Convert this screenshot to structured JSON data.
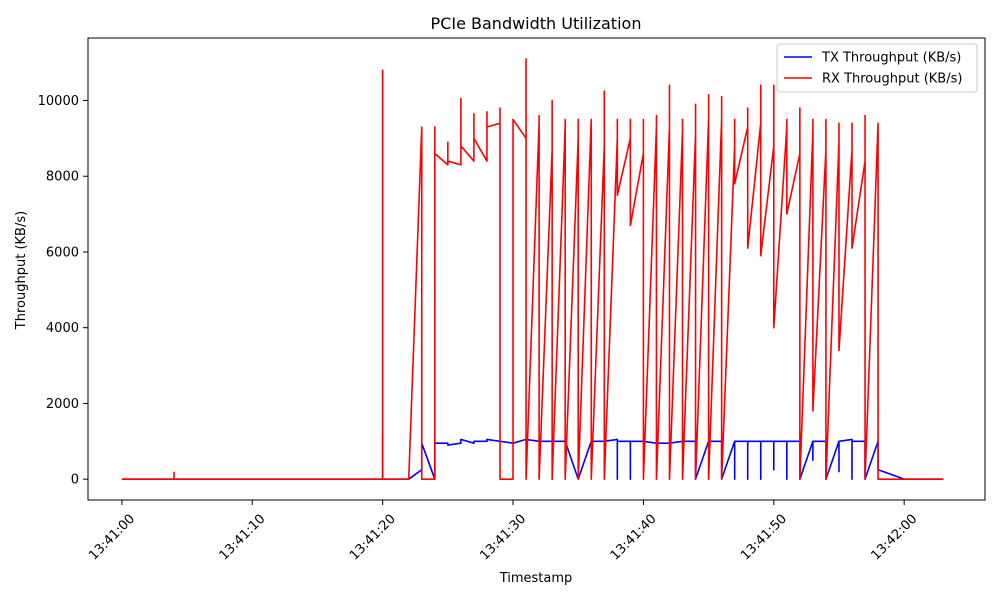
{
  "chart_data": {
    "type": "line",
    "title": "PCIe Bandwidth Utilization",
    "xlabel": "Timestamp",
    "ylabel": "Throughput (KB/s)",
    "xlim": [
      "13:40:57.4",
      "13:42:06.2"
    ],
    "ylim": [
      -550,
      11650
    ],
    "x_ticks": [
      "13:41:00",
      "13:41:10",
      "13:41:20",
      "13:41:30",
      "13:41:40",
      "13:41:50",
      "13:42:00"
    ],
    "y_ticks": [
      0,
      2000,
      4000,
      6000,
      8000,
      10000
    ],
    "grid": false,
    "legend_position": "top-right",
    "series": [
      {
        "name": "TX Throughput (KB/s)",
        "color": "#0000ff",
        "x": [
          "13:41:00",
          "13:41:02",
          "13:41:04",
          "13:41:06",
          "13:41:08",
          "13:41:10",
          "13:41:12",
          "13:41:14",
          "13:41:16",
          "13:41:18",
          "13:41:20",
          "13:41:20",
          "13:41:20",
          "13:41:22",
          "13:41:23",
          "13:41:23",
          "13:41:24",
          "13:41:24",
          "13:41:25",
          "13:41:25",
          "13:41:26",
          "13:41:26",
          "13:41:27",
          "13:41:27",
          "13:41:28",
          "13:41:28",
          "13:41:29",
          "13:41:29",
          "13:41:30",
          "13:41:31",
          "13:41:32",
          "13:41:33",
          "13:41:34",
          "13:41:35",
          "13:41:35",
          "13:41:36",
          "13:41:37",
          "13:41:38",
          "13:41:38",
          "13:41:38",
          "13:41:39",
          "13:41:39",
          "13:41:39",
          "13:41:40",
          "13:41:41",
          "13:41:42",
          "13:41:43",
          "13:41:44",
          "13:41:44",
          "13:41:45",
          "13:41:46",
          "13:41:46",
          "13:41:47",
          "13:41:47",
          "13:41:47",
          "13:41:48",
          "13:41:48",
          "13:41:48",
          "13:41:49",
          "13:41:49",
          "13:41:49",
          "13:41:50",
          "13:41:50",
          "13:41:50",
          "13:41:51",
          "13:41:51",
          "13:41:51",
          "13:41:52",
          "13:41:52",
          "13:41:53",
          "13:41:53",
          "13:41:53",
          "13:41:54",
          "13:41:54",
          "13:41:55",
          "13:41:55",
          "13:41:55",
          "13:41:56",
          "13:41:56",
          "13:41:56",
          "13:41:57",
          "13:41:57",
          "13:41:58",
          "13:41:58",
          "13:42:00",
          "13:42:01",
          "13:42:02",
          "13:42:03"
        ],
        "y": [
          0,
          0,
          0,
          0,
          0,
          0,
          0,
          0,
          0,
          0,
          0,
          1100,
          0,
          0,
          250,
          950,
          0,
          950,
          950,
          900,
          950,
          1050,
          950,
          1000,
          1000,
          1050,
          1000,
          1000,
          950,
          1050,
          1000,
          1000,
          1000,
          0,
          0,
          1000,
          1000,
          1050,
          0,
          1000,
          1000,
          0,
          1000,
          1000,
          950,
          950,
          1000,
          1000,
          0,
          1000,
          1000,
          0,
          1000,
          0,
          1000,
          1000,
          0,
          1000,
          1000,
          0,
          1000,
          1000,
          250,
          1000,
          1000,
          0,
          1000,
          1000,
          0,
          1000,
          500,
          1000,
          1000,
          0,
          1000,
          200,
          1000,
          1050,
          0,
          1000,
          1000,
          0,
          1000,
          250,
          0,
          0,
          0,
          0
        ]
      },
      {
        "name": "RX Throughput (KB/s)",
        "color": "#ff0000",
        "x": [
          "13:41:00",
          "13:41:01",
          "13:41:02",
          "13:41:03",
          "13:41:04",
          "13:41:04",
          "13:41:04",
          "13:41:06",
          "13:41:08",
          "13:41:10",
          "13:41:12",
          "13:41:14",
          "13:41:16",
          "13:41:18",
          "13:41:20",
          "13:41:20",
          "13:41:20",
          "13:41:22",
          "13:41:23",
          "13:41:23",
          "13:41:24",
          "13:41:24",
          "13:41:24",
          "13:41:25",
          "13:41:25",
          "13:41:25",
          "13:41:26",
          "13:41:26",
          "13:41:26",
          "13:41:27",
          "13:41:27",
          "13:41:27",
          "13:41:28",
          "13:41:28",
          "13:41:28",
          "13:41:29",
          "13:41:29",
          "13:41:29",
          "13:41:30",
          "13:41:30",
          "13:41:31",
          "13:41:31",
          "13:41:31",
          "13:41:32",
          "13:41:32",
          "13:41:32",
          "13:41:33",
          "13:41:33",
          "13:41:33",
          "13:41:34",
          "13:41:34",
          "13:41:34",
          "13:41:35",
          "13:41:35",
          "13:41:35",
          "13:41:36",
          "13:41:36",
          "13:41:36",
          "13:41:37",
          "13:41:37",
          "13:41:37",
          "13:41:38",
          "13:41:38",
          "13:41:38",
          "13:41:39",
          "13:41:39",
          "13:41:39",
          "13:41:40",
          "13:41:40",
          "13:41:40",
          "13:41:41",
          "13:41:41",
          "13:41:41",
          "13:41:42",
          "13:41:42",
          "13:41:42",
          "13:41:43",
          "13:41:43",
          "13:41:43",
          "13:41:44",
          "13:41:44",
          "13:41:44",
          "13:41:45",
          "13:41:45",
          "13:41:45",
          "13:41:46",
          "13:41:46",
          "13:41:46",
          "13:41:47",
          "13:41:47",
          "13:41:47",
          "13:41:48",
          "13:41:48",
          "13:41:48",
          "13:41:49",
          "13:41:49",
          "13:41:49",
          "13:41:50",
          "13:41:50",
          "13:41:50",
          "13:41:51",
          "13:41:51",
          "13:41:51",
          "13:41:52",
          "13:41:52",
          "13:41:52",
          "13:41:53",
          "13:41:53",
          "13:41:53",
          "13:41:54",
          "13:41:54",
          "13:41:54",
          "13:41:55",
          "13:41:55",
          "13:41:55",
          "13:41:56",
          "13:41:56",
          "13:41:56",
          "13:41:57",
          "13:41:57",
          "13:41:57",
          "13:41:58",
          "13:41:58",
          "13:41:58",
          "13:42:00",
          "13:42:01",
          "13:42:02",
          "13:42:03"
        ],
        "y": [
          0,
          0,
          0,
          0,
          0,
          180,
          0,
          0,
          0,
          0,
          0,
          0,
          0,
          0,
          0,
          10800,
          0,
          0,
          9300,
          0,
          0,
          9300,
          8600,
          8300,
          8900,
          8400,
          8300,
          10050,
          8800,
          8400,
          9650,
          9000,
          8400,
          9700,
          9300,
          9400,
          9800,
          0,
          0,
          9500,
          9000,
          11100,
          0,
          9400,
          9600,
          0,
          8700,
          10000,
          0,
          9300,
          9500,
          0,
          9000,
          9500,
          0,
          9500,
          8600,
          0,
          8800,
          10250,
          0,
          9000,
          9500,
          7500,
          9000,
          9500,
          6700,
          8600,
          9500,
          0,
          9300,
          9600,
          0,
          9300,
          10400,
          0,
          9200,
          9500,
          0,
          9100,
          9900,
          0,
          9500,
          10150,
          0,
          9500,
          10100,
          0,
          8800,
          9500,
          7800,
          9300,
          9800,
          6100,
          9400,
          10400,
          5900,
          8800,
          10400,
          4000,
          9300,
          9500,
          7000,
          8600,
          9800,
          0,
          9200,
          9500,
          1800,
          8700,
          9500,
          0,
          8900,
          9400,
          3400,
          8700,
          9400,
          6100,
          8400,
          9600,
          0,
          9400,
          9400,
          0,
          0,
          0,
          0,
          0
        ]
      }
    ]
  }
}
